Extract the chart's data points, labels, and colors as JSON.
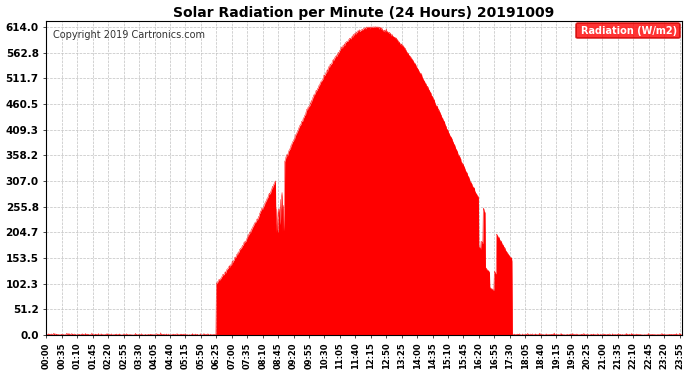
{
  "title": "Solar Radiation per Minute (24 Hours) 20191009",
  "copyright": "Copyright 2019 Cartronics.com",
  "legend_label": "Radiation (W/m2)",
  "bg_color": "#ffffff",
  "plot_bg_color": "#ffffff",
  "fill_color": "#ff0000",
  "line_color": "#ff0000",
  "grid_color": "#c0c0c0",
  "y_ticks": [
    0.0,
    51.2,
    102.3,
    153.5,
    204.7,
    255.8,
    307.0,
    358.2,
    409.3,
    460.5,
    511.7,
    562.8,
    614.0
  ],
  "y_max": 614.0,
  "y_min": 0.0,
  "sunrise_minute": 385,
  "sunset_minute": 1055,
  "peak_minute": 740,
  "peak_value": 614.0,
  "total_minutes": 1440,
  "x_tick_step": 35,
  "title_fontsize": 10,
  "copyright_fontsize": 7,
  "tick_fontsize": 6,
  "ytick_fontsize": 7.5
}
